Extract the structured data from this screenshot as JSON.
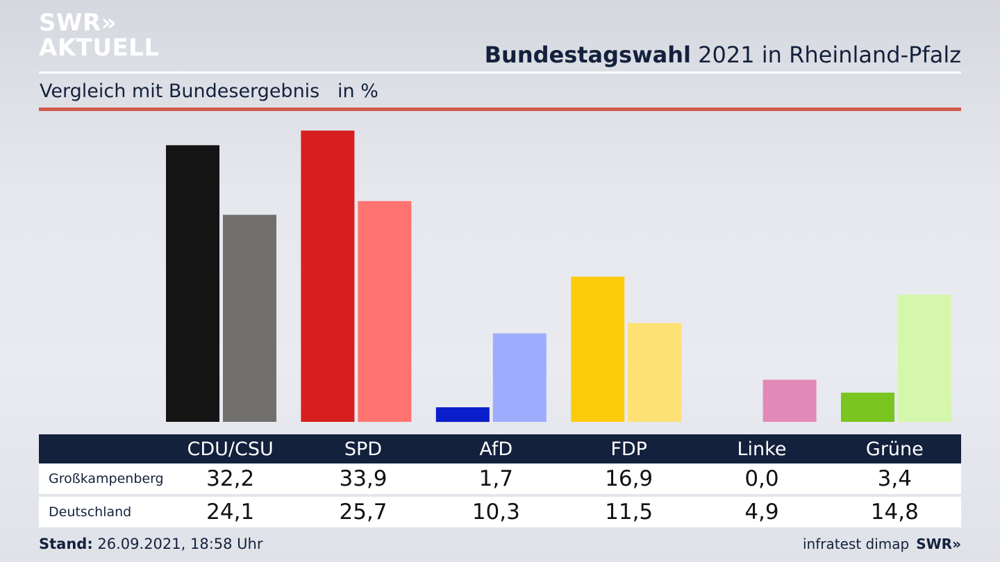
{
  "logo": {
    "line1": "SWR»",
    "line2": "AKTUELL"
  },
  "headline": {
    "bold": "Bundestagswahl",
    "rest": " 2021 in Rheinland-Pfalz"
  },
  "subtitle": "Vergleich mit Bundesergebnis   in %",
  "chart_data": {
    "type": "bar",
    "title": "Bundestagswahl 2021 in Rheinland-Pfalz",
    "subtitle": "Vergleich mit Bundesergebnis   in %",
    "categories": [
      "CDU/CSU",
      "SPD",
      "AfD",
      "FDP",
      "Linke",
      "Grüne"
    ],
    "series": [
      {
        "name": "Großkampenberg",
        "values": [
          32.2,
          33.9,
          1.7,
          16.9,
          0.0,
          3.4
        ],
        "colors": [
          "#141414",
          "#d71f1f",
          "#0a1ecb",
          "#fccc0a",
          "#d94d9c",
          "#7ac51f"
        ]
      },
      {
        "name": "Deutschland",
        "values": [
          24.1,
          25.7,
          10.3,
          11.5,
          4.9,
          14.8
        ],
        "colors": [
          "#72706d",
          "#ff7470",
          "#9dacfc",
          "#fde175",
          "#e18ab8",
          "#d5f7ab"
        ]
      }
    ],
    "table": [
      [
        "32,2",
        "33,9",
        "1,7",
        "16,9",
        "0,0",
        "3,4"
      ],
      [
        "24,1",
        "25,7",
        "10,3",
        "11,5",
        "4,9",
        "14,8"
      ]
    ],
    "ylim": [
      0,
      34
    ],
    "grid": false,
    "legend": "table-below"
  },
  "footer": {
    "stand_label": "Stand:",
    "stand_value": " 26.09.2021, 18:58 Uhr",
    "source": "infratest dimap",
    "source_logo": "SWR»"
  }
}
